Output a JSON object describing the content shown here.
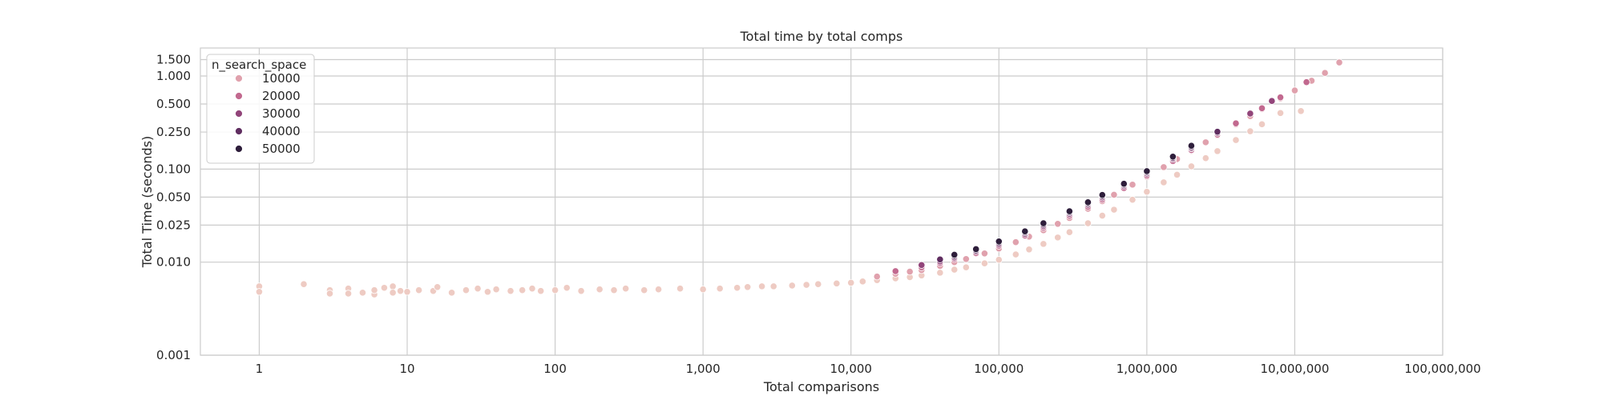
{
  "chart_data": {
    "type": "scatter",
    "title": "Total time by total comps",
    "xlabel": "Total comparisons",
    "ylabel": "Total Time (seconds)",
    "x_scale": "log",
    "y_scale": "log",
    "xlim": [
      0.4,
      100000000
    ],
    "ylim": [
      0.001,
      2.0
    ],
    "x_ticks": [
      1,
      10,
      100,
      1000,
      10000,
      100000,
      1000000,
      10000000,
      100000000
    ],
    "x_tick_labels": [
      "1",
      "10",
      "100",
      "1,000",
      "10,000",
      "100,000",
      "1,000,000",
      "10,000,000",
      "100,000,000"
    ],
    "y_ticks": [
      0.001,
      0.01,
      0.025,
      0.05,
      0.1,
      0.25,
      0.5,
      1.0,
      1.5
    ],
    "y_tick_labels": [
      "0.001",
      "0.010",
      "0.025",
      "0.050",
      "0.100",
      "0.250",
      "0.500",
      "1.000",
      "1.500"
    ],
    "grid": true,
    "legend": {
      "title": "n_search_space",
      "placement": "upper-left",
      "entries": [
        {
          "label": "10000",
          "color": "#e0a1ad"
        },
        {
          "label": "20000",
          "color": "#c2698f"
        },
        {
          "label": "30000",
          "color": "#92457a"
        },
        {
          "label": "40000",
          "color": "#5f2d60"
        },
        {
          "label": "50000",
          "color": "#2e1e3b"
        }
      ]
    },
    "point_color_low": "#eecbc3",
    "series": [
      {
        "color": "#eecbc3",
        "points": [
          [
            1,
            0.0055
          ],
          [
            1,
            0.0048
          ],
          [
            2,
            0.0058
          ],
          [
            3,
            0.005
          ],
          [
            3,
            0.0046
          ],
          [
            4,
            0.0052
          ],
          [
            4,
            0.0046
          ],
          [
            5,
            0.0047
          ],
          [
            6,
            0.0045
          ],
          [
            6,
            0.005
          ],
          [
            7,
            0.0053
          ],
          [
            8,
            0.0055
          ],
          [
            8,
            0.0047
          ],
          [
            9,
            0.0049
          ],
          [
            10,
            0.0048
          ],
          [
            12,
            0.005
          ],
          [
            15,
            0.0049
          ],
          [
            16,
            0.0054
          ],
          [
            20,
            0.0047
          ],
          [
            25,
            0.005
          ],
          [
            30,
            0.0052
          ],
          [
            35,
            0.0048
          ],
          [
            40,
            0.0051
          ],
          [
            50,
            0.0049
          ],
          [
            60,
            0.005
          ],
          [
            70,
            0.0052
          ],
          [
            80,
            0.0049
          ],
          [
            100,
            0.005
          ],
          [
            120,
            0.0053
          ],
          [
            150,
            0.0049
          ],
          [
            200,
            0.0051
          ],
          [
            250,
            0.005
          ],
          [
            300,
            0.0052
          ],
          [
            400,
            0.005
          ],
          [
            500,
            0.0051
          ],
          [
            700,
            0.0052
          ],
          [
            1000,
            0.0051
          ],
          [
            1300,
            0.0052
          ],
          [
            1700,
            0.0053
          ],
          [
            2000,
            0.0054
          ],
          [
            2500,
            0.0055
          ],
          [
            3000,
            0.0055
          ],
          [
            4000,
            0.0056
          ],
          [
            5000,
            0.0057
          ],
          [
            6000,
            0.0058
          ],
          [
            8000,
            0.0059
          ],
          [
            10000,
            0.006
          ],
          [
            12000,
            0.0062
          ],
          [
            15000,
            0.0064
          ],
          [
            20000,
            0.0067
          ],
          [
            25000,
            0.0069
          ],
          [
            30000,
            0.0072
          ],
          [
            40000,
            0.0077
          ],
          [
            50000,
            0.0083
          ],
          [
            60000,
            0.0088
          ],
          [
            80000,
            0.0097
          ],
          [
            100000,
            0.0106
          ],
          [
            130000,
            0.0121
          ],
          [
            160000,
            0.0137
          ],
          [
            200000,
            0.0157
          ],
          [
            250000,
            0.0184
          ],
          [
            300000,
            0.021
          ],
          [
            400000,
            0.0262
          ],
          [
            500000,
            0.0316
          ],
          [
            600000,
            0.0366
          ],
          [
            800000,
            0.0468
          ],
          [
            1000000,
            0.057
          ],
          [
            1300000,
            0.072
          ],
          [
            1600000,
            0.087
          ],
          [
            2000000,
            0.107
          ],
          [
            2500000,
            0.131
          ],
          [
            3000000,
            0.156
          ],
          [
            4000000,
            0.205
          ],
          [
            5000000,
            0.255
          ],
          [
            6000000,
            0.303
          ],
          [
            8000000,
            0.4
          ],
          [
            11000000,
            0.42
          ]
        ]
      },
      {
        "color": "#e0a1ad",
        "points": [
          [
            15000,
            0.007
          ],
          [
            20000,
            0.0075
          ],
          [
            25000,
            0.0079
          ],
          [
            30000,
            0.0082
          ],
          [
            40000,
            0.0091
          ],
          [
            50000,
            0.01
          ],
          [
            60000,
            0.0108
          ],
          [
            80000,
            0.0124
          ],
          [
            100000,
            0.014
          ],
          [
            130000,
            0.0164
          ],
          [
            160000,
            0.0188
          ],
          [
            200000,
            0.022
          ],
          [
            250000,
            0.0258
          ],
          [
            300000,
            0.0298
          ],
          [
            400000,
            0.0375
          ],
          [
            500000,
            0.0452
          ],
          [
            600000,
            0.053
          ],
          [
            800000,
            0.068
          ],
          [
            1000000,
            0.083
          ],
          [
            1300000,
            0.105
          ],
          [
            1600000,
            0.128
          ],
          [
            2000000,
            0.157
          ],
          [
            2500000,
            0.194
          ],
          [
            3000000,
            0.23
          ],
          [
            4000000,
            0.302
          ],
          [
            5000000,
            0.37
          ],
          [
            6000000,
            0.44
          ],
          [
            8000000,
            0.575
          ],
          [
            10000000,
            0.7
          ],
          [
            13000000,
            0.89
          ],
          [
            16000000,
            1.08
          ],
          [
            20000000,
            1.4
          ]
        ]
      },
      {
        "color": "#c2698f",
        "points": [
          [
            20000,
            0.008
          ],
          [
            30000,
            0.0088
          ],
          [
            40000,
            0.0098
          ],
          [
            50000,
            0.0108
          ],
          [
            70000,
            0.0125
          ],
          [
            100000,
            0.015
          ],
          [
            150000,
            0.0193
          ],
          [
            200000,
            0.0234
          ],
          [
            300000,
            0.0315
          ],
          [
            400000,
            0.0394
          ],
          [
            500000,
            0.0472
          ],
          [
            700000,
            0.0625
          ],
          [
            1000000,
            0.0855
          ],
          [
            1500000,
            0.122
          ],
          [
            2000000,
            0.16
          ],
          [
            3000000,
            0.235
          ],
          [
            4000000,
            0.31
          ],
          [
            6000000,
            0.45
          ],
          [
            8000000,
            0.59
          ],
          [
            12000000,
            0.86
          ]
        ]
      },
      {
        "color": "#92457a",
        "points": [
          [
            30000,
            0.0093
          ],
          [
            40000,
            0.0102
          ],
          [
            50000,
            0.0112
          ],
          [
            70000,
            0.013
          ],
          [
            100000,
            0.0156
          ],
          [
            150000,
            0.0201
          ],
          [
            200000,
            0.0244
          ],
          [
            300000,
            0.033
          ],
          [
            400000,
            0.0413
          ],
          [
            500000,
            0.0494
          ],
          [
            700000,
            0.0654
          ],
          [
            1000000,
            0.0895
          ],
          [
            1500000,
            0.128
          ],
          [
            2000000,
            0.167
          ],
          [
            3000000,
            0.245
          ],
          [
            5000000,
            0.395
          ],
          [
            7000000,
            0.54
          ]
        ]
      },
      {
        "color": "#5f2d60",
        "points": [
          [
            40000,
            0.0107
          ],
          [
            50000,
            0.0116
          ],
          [
            70000,
            0.0134
          ],
          [
            100000,
            0.0162
          ],
          [
            150000,
            0.0208
          ],
          [
            200000,
            0.0253
          ],
          [
            300000,
            0.0342
          ],
          [
            400000,
            0.0428
          ],
          [
            500000,
            0.0512
          ],
          [
            700000,
            0.0677
          ],
          [
            1000000,
            0.0925
          ],
          [
            1500000,
            0.132
          ],
          [
            2000000,
            0.172
          ],
          [
            3000000,
            0.252
          ]
        ]
      },
      {
        "color": "#2e1e3b",
        "points": [
          [
            50000,
            0.012
          ],
          [
            70000,
            0.0138
          ],
          [
            100000,
            0.0167
          ],
          [
            150000,
            0.0214
          ],
          [
            200000,
            0.0262
          ],
          [
            300000,
            0.0352
          ],
          [
            400000,
            0.044
          ],
          [
            500000,
            0.0527
          ],
          [
            700000,
            0.0695
          ],
          [
            1000000,
            0.095
          ],
          [
            1500000,
            0.136
          ],
          [
            2000000,
            0.178
          ]
        ]
      }
    ]
  }
}
